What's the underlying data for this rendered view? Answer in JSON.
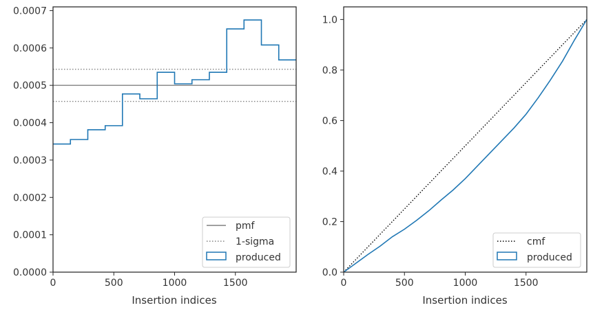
{
  "chart_data": [
    {
      "type": "line",
      "xlabel": "Insertion indices",
      "ylabel": "",
      "xlim": [
        0,
        2000
      ],
      "ylim": [
        0,
        0.00071
      ],
      "x_ticks": [
        0,
        500,
        1000,
        1500
      ],
      "y_ticks": [
        0.0,
        0.0001,
        0.0002,
        0.0003,
        0.0004,
        0.0005,
        0.0006,
        0.0007
      ],
      "x_tick_labels": [
        "0",
        "500",
        "1000",
        "1500"
      ],
      "y_tick_labels": [
        "0.0000",
        "0.0001",
        "0.0002",
        "0.0003",
        "0.0004",
        "0.0005",
        "0.0006",
        "0.0007"
      ],
      "grid": false,
      "legend_position": "lower-right",
      "legend": [
        "pmf",
        "1-sigma",
        "produced"
      ],
      "series": [
        {
          "name": "pmf",
          "style": "solid",
          "color": "#808080",
          "x": [
            0,
            2000
          ],
          "y": [
            0.0005,
            0.0005
          ]
        },
        {
          "name": "1-sigma",
          "style": "dotted",
          "color": "#808080",
          "x": [
            0,
            2000
          ],
          "y": [
            0.000543,
            0.000543
          ]
        },
        {
          "name": "1-sigma",
          "style": "dotted",
          "color": "#808080",
          "x": [
            0,
            2000
          ],
          "y": [
            0.000457,
            0.000457
          ]
        },
        {
          "name": "produced",
          "style": "step",
          "color": "#1f77b4",
          "bin_edges": [
            0,
            143,
            286,
            429,
            571,
            714,
            857,
            1000,
            1143,
            1286,
            1429,
            1571,
            1714,
            1857,
            2000
          ],
          "values": [
            0.000343,
            0.000355,
            0.000381,
            0.000392,
            0.000477,
            0.000464,
            0.000535,
            0.000504,
            0.000515,
            0.000535,
            0.000651,
            0.000675,
            0.000608,
            0.000568
          ]
        }
      ]
    },
    {
      "type": "line",
      "xlabel": "Insertion indices",
      "ylabel": "",
      "xlim": [
        0,
        2000
      ],
      "ylim": [
        0,
        1.05
      ],
      "x_ticks": [
        0,
        500,
        1000,
        1500
      ],
      "y_ticks": [
        0.0,
        0.2,
        0.4,
        0.6,
        0.8,
        1.0
      ],
      "x_tick_labels": [
        "0",
        "500",
        "1000",
        "1500"
      ],
      "y_tick_labels": [
        "0.0",
        "0.2",
        "0.4",
        "0.6",
        "0.8",
        "1.0"
      ],
      "grid": false,
      "legend_position": "lower-right",
      "legend": [
        "cmf",
        "produced"
      ],
      "series": [
        {
          "name": "cmf",
          "style": "dotted",
          "color": "#000000",
          "x": [
            0,
            2000
          ],
          "y": [
            0.0,
            1.0
          ]
        },
        {
          "name": "produced",
          "style": "line",
          "color": "#1f77b4",
          "x": [
            0,
            100,
            200,
            300,
            400,
            500,
            600,
            700,
            800,
            900,
            1000,
            1100,
            1200,
            1300,
            1400,
            1500,
            1600,
            1700,
            1800,
            1900,
            2000
          ],
          "y": [
            0.0,
            0.035,
            0.07,
            0.103,
            0.14,
            0.17,
            0.205,
            0.243,
            0.285,
            0.325,
            0.37,
            0.42,
            0.47,
            0.52,
            0.57,
            0.625,
            0.69,
            0.76,
            0.835,
            0.92,
            1.0
          ]
        }
      ]
    }
  ]
}
